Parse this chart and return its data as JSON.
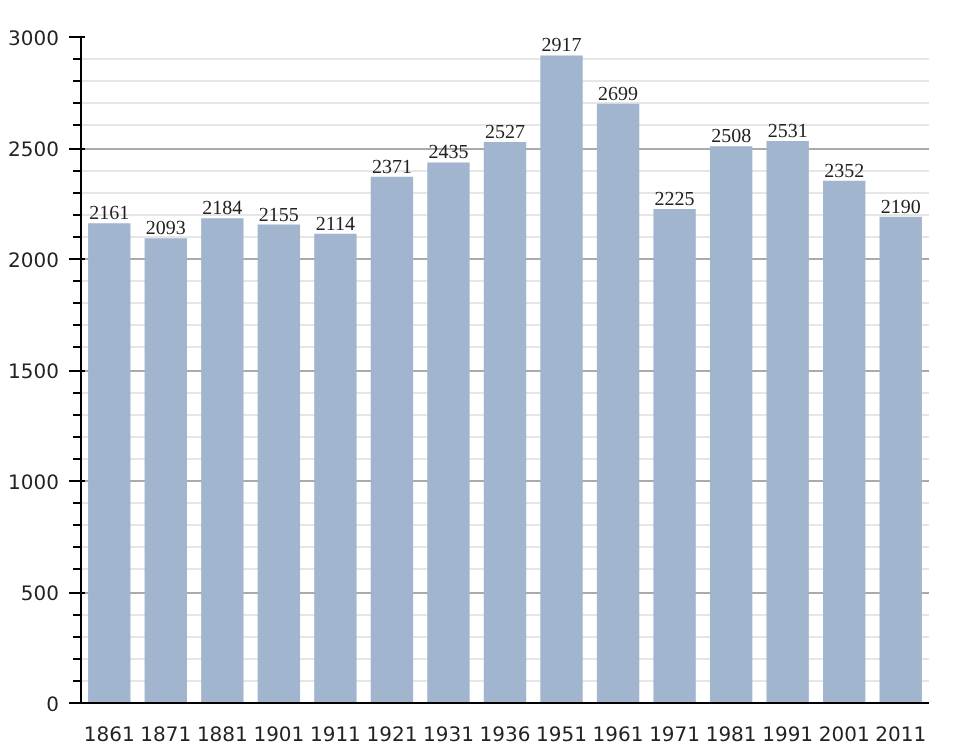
{
  "chart_data": {
    "type": "bar",
    "categories": [
      "1861",
      "1871",
      "1881",
      "1901",
      "1911",
      "1921",
      "1931",
      "1936",
      "1951",
      "1961",
      "1971",
      "1981",
      "1991",
      "2001",
      "2011"
    ],
    "values": [
      2161,
      2093,
      2184,
      2155,
      2114,
      2371,
      2435,
      2527,
      2917,
      2699,
      2225,
      2508,
      2531,
      2352,
      2190
    ],
    "color": "#a2b5cf",
    "ylim": [
      0,
      3000
    ],
    "yticks": [
      0,
      500,
      1000,
      1500,
      2000,
      2500,
      3000
    ],
    "grid": "y",
    "data_labels": true
  }
}
